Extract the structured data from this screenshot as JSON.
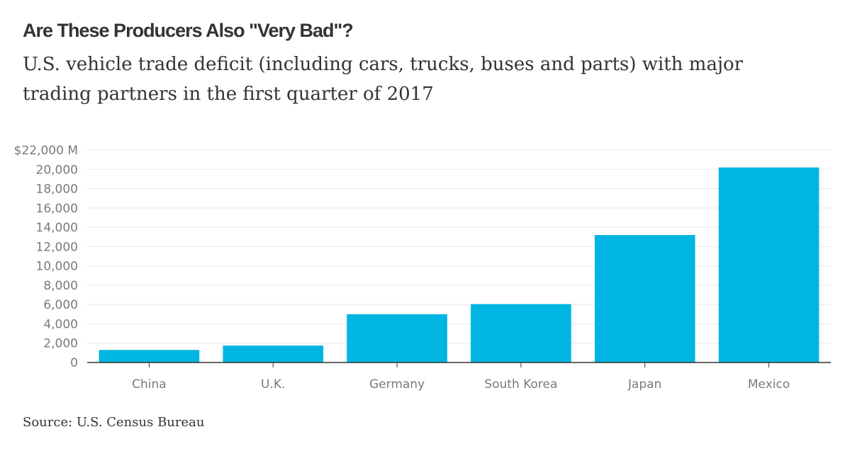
{
  "title": "Are These Producers Also \"Very Bad\"?",
  "subtitle": "U.S. vehicle trade deficit (including cars, trucks, buses and parts) with major trading partners in the first quarter of 2017",
  "source": "Source: U.S. Census Bureau",
  "colors": {
    "bar": "#00b5e2",
    "grid": "#e8e8e8",
    "axis": "#333333",
    "text": "#333333",
    "tick_text": "#7a7a7a"
  },
  "chart_data": {
    "type": "bar",
    "categories": [
      "China",
      "U.K.",
      "Germany",
      "South Korea",
      "Japan",
      "Mexico"
    ],
    "values": [
      1300,
      1750,
      5000,
      6050,
      13200,
      20200
    ],
    "ylim": [
      0,
      22000
    ],
    "yticks": [
      0,
      2000,
      4000,
      6000,
      8000,
      10000,
      12000,
      14000,
      16000,
      18000,
      20000,
      22000
    ],
    "ytick_labels": [
      "0",
      "2,000",
      "4,000",
      "6,000",
      "8,000",
      "10,000",
      "12,000",
      "14,000",
      "16,000",
      "18,000",
      "20,000",
      "$22,000 M"
    ],
    "grid": true,
    "legend": "none"
  }
}
